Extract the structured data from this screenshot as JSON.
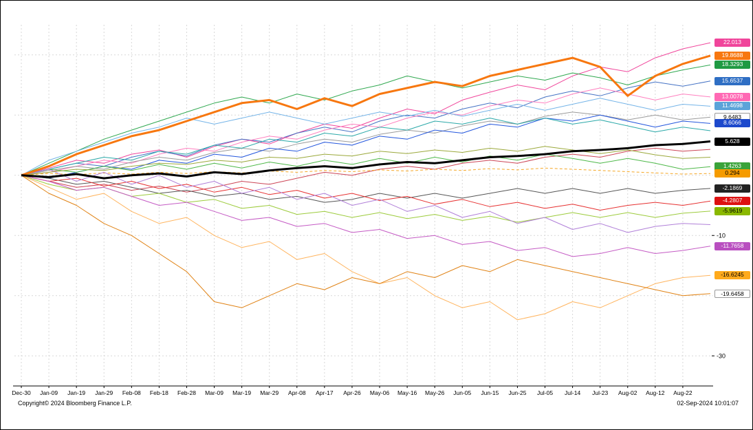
{
  "footer": {
    "copyright": "Copyright© 2024 Bloomberg Finance L.P.",
    "timestamp": "02-Sep-2024 10:01:07"
  },
  "chart_data": {
    "type": "line",
    "title": "",
    "xlabel": "",
    "ylabel": "",
    "legend": "none",
    "grid_style": "dashed",
    "ylim": [
      -35,
      25
    ],
    "y_gridlines": [
      20,
      10,
      0,
      -10,
      -20,
      -30
    ],
    "y_axis_visible_ticks": [
      {
        "value": -10,
        "label": "-10"
      },
      {
        "value": -30,
        "label": "-30"
      }
    ],
    "x_tick_labels": [
      "Dec-30",
      "Jan-09",
      "Jan-19",
      "Jan-29",
      "Feb-08",
      "Feb-18",
      "Feb-28",
      "Mar-09",
      "Mar-19",
      "Mar-29",
      "Apr-08",
      "Apr-17",
      "Apr-26",
      "May-06",
      "May-16",
      "May-26",
      "Jun-05",
      "Jun-15",
      "Jun-25",
      "Jul-05",
      "Jul-14",
      "Jul-23",
      "Aug-02",
      "Aug-12",
      "Aug-22"
    ],
    "series": [
      {
        "id": "series-pink",
        "color": "#f0459b",
        "width": 1,
        "end_label": "22.013",
        "label_bg": "#f0459b",
        "label_fg": "#ffffff",
        "values": [
          0,
          1.2,
          2.5,
          2.0,
          3.5,
          4.2,
          3.0,
          4.8,
          6.0,
          5.2,
          7.0,
          8.5,
          7.8,
          9.5,
          11.0,
          10.2,
          12.5,
          13.8,
          15.0,
          14.2,
          16.5,
          18.0,
          17.2,
          19.5,
          21.0,
          22.013
        ]
      },
      {
        "id": "series-orange-thick",
        "color": "#f7770f",
        "width": 3,
        "end_label": "19.8688",
        "label_bg": "#f7770f",
        "label_fg": "#ffffff",
        "values": [
          0,
          1.5,
          3.5,
          5.0,
          6.5,
          7.5,
          9.0,
          10.5,
          12.0,
          12.5,
          11.0,
          12.8,
          11.5,
          13.5,
          14.5,
          15.5,
          14.8,
          16.5,
          17.5,
          18.5,
          19.5,
          18.0,
          13.2,
          16.5,
          18.5,
          19.8688
        ]
      },
      {
        "id": "series-green",
        "color": "#2fa84f",
        "width": 1,
        "end_label": "18.3293",
        "label_bg": "#1f9a43",
        "label_fg": "#ffffff",
        "values": [
          0,
          2,
          4,
          6,
          7.5,
          9,
          10.5,
          12,
          13,
          12,
          13.5,
          12.5,
          14,
          15,
          16.5,
          15.5,
          14.5,
          15.5,
          16.5,
          15.8,
          17,
          16.2,
          15,
          16.5,
          17.5,
          18.3293
        ]
      },
      {
        "id": "series-steelblue",
        "color": "#4472c4",
        "width": 1,
        "end_label": "15.6537",
        "label_bg": "#2f6fc4",
        "label_fg": "#ffffff",
        "values": [
          0,
          1,
          2,
          1.5,
          3,
          4,
          3.2,
          5,
          6,
          5.5,
          7,
          8,
          7.2,
          9,
          10,
          9.5,
          11,
          12,
          11.2,
          13,
          14,
          13.2,
          14.5,
          15.5,
          14.8,
          15.6537
        ]
      },
      {
        "id": "series-hotpink",
        "color": "#ff7fbf",
        "width": 1,
        "end_label": "13.0078",
        "label_bg": "#ff69b4",
        "label_fg": "#ffffff",
        "values": [
          0,
          0.5,
          1.5,
          2.5,
          2,
          3.5,
          4.5,
          4,
          5.5,
          6.5,
          6,
          7.5,
          8.5,
          8,
          9.5,
          10.5,
          10,
          11.5,
          12.5,
          12,
          13.5,
          14.5,
          13.5,
          12.5,
          13.5,
          13.0078
        ]
      },
      {
        "id": "series-lightblue",
        "color": "#74b4e8",
        "width": 1,
        "end_label": "11.4698",
        "label_bg": "#5ba3d9",
        "label_fg": "#ffffff",
        "values": [
          0,
          2.5,
          4,
          5.5,
          7,
          8,
          9.5,
          8.5,
          9.5,
          10.5,
          9.5,
          8.5,
          9.5,
          10.5,
          9.8,
          10.8,
          9.8,
          10.8,
          11.8,
          10.8,
          11.8,
          12.8,
          11.8,
          10.8,
          11.8,
          11.4698
        ]
      },
      {
        "id": "series-gray",
        "color": "#9a9a9a",
        "width": 1,
        "end_label": "9.6483",
        "label_bg": "#ffffff",
        "label_fg": "#000000",
        "values": [
          0,
          0.8,
          1.5,
          1,
          2.2,
          3,
          2.5,
          3.8,
          4.5,
          4,
          5.2,
          6,
          5.5,
          6.8,
          7.5,
          7,
          8.2,
          9,
          8.5,
          9.8,
          10.5,
          10,
          9.2,
          10,
          9.2,
          9.6483
        ]
      },
      {
        "id": "series-blue",
        "color": "#2255dd",
        "width": 1,
        "end_label": "8.6066",
        "label_bg": "#1d49cc",
        "label_fg": "#ffffff",
        "values": [
          0,
          -0.5,
          0.5,
          1.5,
          1,
          2.5,
          2,
          3.5,
          3,
          4.5,
          4,
          5.5,
          5,
          6.5,
          6,
          7.5,
          7,
          8.5,
          8,
          9.5,
          9,
          10,
          9,
          8,
          9,
          8.6066
        ]
      },
      {
        "id": "series-teal",
        "color": "#2aa8a8",
        "width": 1,
        "end_label": null,
        "label_bg": null,
        "label_fg": null,
        "values": [
          0,
          1,
          2,
          3,
          2.5,
          4,
          3.5,
          5,
          4.5,
          6,
          5.5,
          7,
          6.5,
          8,
          7.5,
          9,
          8.5,
          9.5,
          8.5,
          9.5,
          8.5,
          9.2,
          8.2,
          7.2,
          8,
          7.4
        ]
      },
      {
        "id": "series-black-thick",
        "color": "#000000",
        "width": 3,
        "end_label": "5.628",
        "label_bg": "#000000",
        "label_fg": "#ffffff",
        "values": [
          0,
          -0.3,
          0.2,
          -0.5,
          0,
          0.3,
          -0.2,
          0.5,
          0.2,
          0.8,
          1.2,
          1.5,
          1.2,
          1.8,
          2.2,
          2,
          2.5,
          3,
          3.2,
          3.5,
          4,
          4.2,
          4.5,
          5,
          5.2,
          5.628
        ]
      },
      {
        "id": "series-crimson",
        "color": "#cc4455",
        "width": 1,
        "end_label": null,
        "label_bg": null,
        "label_fg": null,
        "values": [
          0,
          -1,
          -2,
          -1.5,
          -2.5,
          -1.8,
          -2.8,
          -2,
          -1,
          -1.5,
          -0.5,
          0.5,
          0,
          1,
          1.5,
          1,
          2,
          2.5,
          2,
          3,
          3.5,
          3,
          4,
          4.5,
          4,
          4.3
        ]
      },
      {
        "id": "series-brightgreen",
        "color": "#4db848",
        "width": 1,
        "end_label": "1.4263",
        "label_bg": "#3aa33a",
        "label_fg": "#ffffff",
        "values": [
          0,
          1,
          0.5,
          1.5,
          0.8,
          1.8,
          1,
          2,
          1.2,
          2.2,
          1.5,
          2.5,
          1.8,
          2.8,
          2,
          3,
          2.2,
          3.2,
          2.5,
          3.5,
          2.8,
          2,
          2.8,
          2,
          1,
          1.4263
        ]
      },
      {
        "id": "series-amber-dashed",
        "color": "#f5a623",
        "width": 1,
        "dash": "4,3",
        "end_label": "0.294",
        "label_bg": "#f59b00",
        "label_fg": "#000000",
        "values": [
          0,
          0.3,
          0.1,
          0.4,
          0.2,
          0.5,
          0.3,
          0.6,
          0.4,
          0.7,
          0.5,
          0.8,
          0.6,
          0.9,
          0.7,
          1,
          0.8,
          1.1,
          0.9,
          1.2,
          1,
          0.8,
          0.6,
          0.4,
          0.2,
          0.294
        ]
      },
      {
        "id": "series-darkgray",
        "color": "#555555",
        "width": 1,
        "end_label": "-2.1869",
        "label_bg": "#222222",
        "label_fg": "#ffffff",
        "values": [
          0,
          -0.5,
          -1.5,
          -1,
          -2,
          -3,
          -2.5,
          -3.5,
          -3,
          -4,
          -3.5,
          -4.5,
          -4,
          -3,
          -3.8,
          -3,
          -3.8,
          -3,
          -2.2,
          -3,
          -2.2,
          -3,
          -2.2,
          -3,
          -2.5,
          -2.1869
        ]
      },
      {
        "id": "series-red",
        "color": "#e63030",
        "width": 1,
        "end_label": "-4.2807",
        "label_bg": "#dd1111",
        "label_fg": "#ffffff",
        "values": [
          0,
          -1,
          -0.5,
          -1.8,
          -1,
          -2.2,
          -1.5,
          -2.8,
          -2,
          -3.2,
          -2.5,
          -3.8,
          -3,
          -4.2,
          -3.5,
          -4.8,
          -4,
          -5.2,
          -4.5,
          -5.5,
          -4.8,
          -5.8,
          -5,
          -4.5,
          -5,
          -4.2807
        ]
      },
      {
        "id": "series-yellowgreen",
        "color": "#9ccb3b",
        "width": 1,
        "end_label": "-5.9619",
        "label_bg": "#8ab800",
        "label_fg": "#000000",
        "values": [
          0,
          -1.5,
          -2.5,
          -2,
          -3.5,
          -3,
          -4.5,
          -4,
          -5.5,
          -5,
          -6.5,
          -6,
          -7,
          -6.2,
          -7.2,
          -6.5,
          -7.5,
          -6.8,
          -7.8,
          -7,
          -6.2,
          -7,
          -6.2,
          -7,
          -6.3,
          -5.9619
        ]
      },
      {
        "id": "series-violet",
        "color": "#b07fd8",
        "width": 1,
        "end_label": null,
        "label_bg": null,
        "label_fg": null,
        "values": [
          0,
          1,
          -1,
          0.5,
          -1.5,
          0,
          -2,
          -1,
          -3,
          -2,
          -4,
          -3,
          -5,
          -4,
          -6,
          -5,
          -7,
          -6,
          -8,
          -7,
          -9,
          -8,
          -9.5,
          -8.5,
          -8,
          -8.2
        ]
      },
      {
        "id": "series-magenta",
        "color": "#c45ac4",
        "width": 1,
        "end_label": "-11.7658",
        "label_bg": "#b94fc0",
        "label_fg": "#ffffff",
        "values": [
          0,
          -1,
          -2.5,
          -2,
          -3.5,
          -5,
          -4.5,
          -6,
          -7.5,
          -7,
          -8.5,
          -8,
          -9.5,
          -9,
          -10.5,
          -10,
          -11.5,
          -11,
          -12.5,
          -12,
          -13.5,
          -13,
          -12,
          -13,
          -12.5,
          -11.7658
        ]
      },
      {
        "id": "series-lightorange",
        "color": "#ffb45e",
        "width": 1,
        "end_label": "-16.6245",
        "label_bg": "#ffaa1c",
        "label_fg": "#000000",
        "values": [
          0,
          -2,
          -4,
          -3,
          -6,
          -8,
          -7,
          -10,
          -12,
          -11,
          -14,
          -13,
          -16,
          -18,
          -17,
          -20,
          -22,
          -21,
          -24,
          -23,
          -21,
          -22,
          -20,
          -18,
          -17,
          -16.6245
        ]
      },
      {
        "id": "series-darkorange",
        "color": "#e08214",
        "width": 1,
        "end_label": "-19.6458",
        "label_bg": "#ffffff",
        "label_fg": "#000000",
        "values": [
          0,
          -3,
          -5,
          -8,
          -10,
          -13,
          -16,
          -21,
          -22,
          -20,
          -18,
          -19,
          -17,
          -18,
          -16,
          -17,
          -15,
          -16,
          -14,
          -15,
          -16,
          -17,
          -18,
          -19,
          -20,
          -19.6458
        ]
      },
      {
        "id": "series-olive",
        "color": "#9aa83a",
        "width": 1,
        "end_label": null,
        "label_bg": null,
        "label_fg": null,
        "values": [
          0,
          0.5,
          1,
          0.8,
          1.5,
          2,
          1.8,
          2.5,
          2.2,
          3,
          2.8,
          3.5,
          3.2,
          4,
          3.6,
          4.2,
          3.8,
          4.5,
          4,
          4.8,
          4.2,
          3.6,
          4.2,
          3.4,
          2.8,
          3.0
        ]
      }
    ]
  }
}
